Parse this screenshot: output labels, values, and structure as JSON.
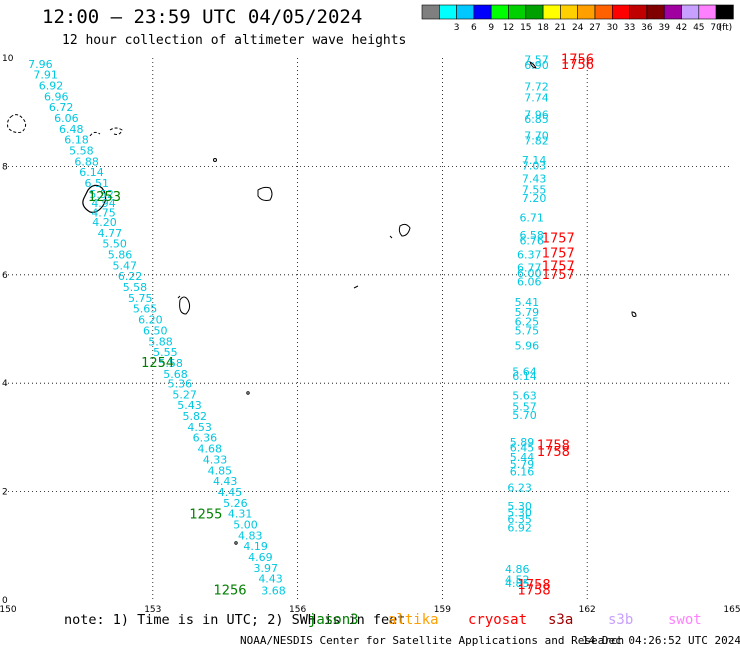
{
  "title": "12:00 — 23:59 UTC 04/05/2024",
  "subtitle": "12 hour collection of altimeter wave heights",
  "legend": {
    "unit": "(ft)",
    "bins": [
      {
        "label": "",
        "color": "#7f7f7f"
      },
      {
        "label": "3",
        "color": "#00ffff"
      },
      {
        "label": "6",
        "color": "#00c8ff"
      },
      {
        "label": "9",
        "color": "#0000ff"
      },
      {
        "label": "12",
        "color": "#00ff00"
      },
      {
        "label": "15",
        "color": "#00d000"
      },
      {
        "label": "18",
        "color": "#00a000"
      },
      {
        "label": "21",
        "color": "#ffff00"
      },
      {
        "label": "24",
        "color": "#ffd000"
      },
      {
        "label": "27",
        "color": "#ffa000"
      },
      {
        "label": "30",
        "color": "#ff6000"
      },
      {
        "label": "33",
        "color": "#ff0000"
      },
      {
        "label": "36",
        "color": "#c00000"
      },
      {
        "label": "39",
        "color": "#800000"
      },
      {
        "label": "42",
        "color": "#a000a0"
      },
      {
        "label": "45",
        "color": "#c8a0ff"
      },
      {
        "label": "70",
        "color": "#ff80ff"
      },
      {
        "label": "",
        "color": "#000000"
      }
    ]
  },
  "axes": {
    "x_ticks": [
      "150",
      "153",
      "156",
      "159",
      "162",
      "165"
    ],
    "y_ticks": [
      "0",
      "2",
      "4",
      "6",
      "8",
      "10"
    ]
  },
  "map": {
    "lon_range": [
      150,
      165
    ],
    "lat_range": [
      0,
      10
    ],
    "grid": true,
    "value_color": "#00c8e0",
    "time_color_jason": "#008000",
    "time_color_cryosat": "#ff0000"
  },
  "tracks": [
    {
      "time_labels": [
        {
          "text": "1253",
          "lon": 152.0,
          "lat": 7.36
        },
        {
          "text": "1254",
          "lon": 153.1,
          "lat": 4.3
        },
        {
          "text": "1255",
          "lon": 154.1,
          "lat": 1.5
        },
        {
          "text": "1256",
          "lon": 154.6,
          "lat": 0.1
        }
      ],
      "values": [
        {
          "text": "7.96",
          "lon": 150.67,
          "lat": 9.82
        },
        {
          "text": "7.91",
          "lon": 150.78,
          "lat": 9.62
        },
        {
          "text": "6.92",
          "lon": 150.89,
          "lat": 9.42
        },
        {
          "text": "6.96",
          "lon": 151.0,
          "lat": 9.22
        },
        {
          "text": "6.72",
          "lon": 151.1,
          "lat": 9.02
        },
        {
          "text": "6.06",
          "lon": 151.21,
          "lat": 8.82
        },
        {
          "text": "6.48",
          "lon": 151.31,
          "lat": 8.62
        },
        {
          "text": "6.18",
          "lon": 151.42,
          "lat": 8.42
        },
        {
          "text": "5.58",
          "lon": 151.52,
          "lat": 8.22
        },
        {
          "text": "6.88",
          "lon": 151.63,
          "lat": 8.02
        },
        {
          "text": "6.14",
          "lon": 151.73,
          "lat": 7.82
        },
        {
          "text": "6.51",
          "lon": 151.84,
          "lat": 7.62
        },
        {
          "text": "5.52",
          "lon": 151.94,
          "lat": 7.42
        },
        {
          "text": "4.94",
          "lon": 151.98,
          "lat": 7.25
        },
        {
          "text": "4.75",
          "lon": 151.98,
          "lat": 7.08
        },
        {
          "text": "4.20",
          "lon": 152.0,
          "lat": 6.9
        },
        {
          "text": "4.77",
          "lon": 152.11,
          "lat": 6.7
        },
        {
          "text": "5.50",
          "lon": 152.21,
          "lat": 6.5
        },
        {
          "text": "5.86",
          "lon": 152.32,
          "lat": 6.3
        },
        {
          "text": "5.47",
          "lon": 152.42,
          "lat": 6.1
        },
        {
          "text": "6.22",
          "lon": 152.53,
          "lat": 5.9
        },
        {
          "text": "5.58",
          "lon": 152.63,
          "lat": 5.7
        },
        {
          "text": "5.75",
          "lon": 152.74,
          "lat": 5.5
        },
        {
          "text": "5.65",
          "lon": 152.84,
          "lat": 5.3
        },
        {
          "text": "6.20",
          "lon": 152.95,
          "lat": 5.1
        },
        {
          "text": "6.50",
          "lon": 153.05,
          "lat": 4.9
        },
        {
          "text": "5.88",
          "lon": 153.16,
          "lat": 4.7
        },
        {
          "text": "5.55",
          "lon": 153.26,
          "lat": 4.5
        },
        {
          "text": "5.58",
          "lon": 153.37,
          "lat": 4.3
        },
        {
          "text": "5.68",
          "lon": 153.47,
          "lat": 4.1
        },
        {
          "text": "5.36",
          "lon": 153.56,
          "lat": 3.92
        },
        {
          "text": "5.27",
          "lon": 153.66,
          "lat": 3.72
        },
        {
          "text": "5.43",
          "lon": 153.76,
          "lat": 3.52
        },
        {
          "text": "5.82",
          "lon": 153.87,
          "lat": 3.32
        },
        {
          "text": "4.53",
          "lon": 153.97,
          "lat": 3.12
        },
        {
          "text": "6.36",
          "lon": 154.08,
          "lat": 2.92
        },
        {
          "text": "4.68",
          "lon": 154.18,
          "lat": 2.72
        },
        {
          "text": "4.33",
          "lon": 154.29,
          "lat": 2.52
        },
        {
          "text": "4.85",
          "lon": 154.39,
          "lat": 2.32
        },
        {
          "text": "4.43",
          "lon": 154.5,
          "lat": 2.12
        },
        {
          "text": "4.45",
          "lon": 154.6,
          "lat": 1.92
        },
        {
          "text": "5.26",
          "lon": 154.71,
          "lat": 1.72
        },
        {
          "text": "4.31",
          "lon": 154.81,
          "lat": 1.52
        },
        {
          "text": "5.00",
          "lon": 154.92,
          "lat": 1.32
        },
        {
          "text": "4.83",
          "lon": 155.02,
          "lat": 1.12
        },
        {
          "text": "4.19",
          "lon": 155.13,
          "lat": 0.92
        },
        {
          "text": "4.69",
          "lon": 155.23,
          "lat": 0.72
        },
        {
          "text": "3.97",
          "lon": 155.34,
          "lat": 0.52
        },
        {
          "text": "4.43",
          "lon": 155.44,
          "lat": 0.32
        },
        {
          "text": "3.68",
          "lon": 155.5,
          "lat": 0.1
        }
      ]
    },
    {
      "time_labels": [
        {
          "text": "1756",
          "lon": 161.8,
          "lat": 9.9
        },
        {
          "text": "1756",
          "lon": 161.8,
          "lat": 9.8
        },
        {
          "text": "1757",
          "lon": 161.4,
          "lat": 6.6
        },
        {
          "text": "1757",
          "lon": 161.4,
          "lat": 6.32
        },
        {
          "text": "1757",
          "lon": 161.4,
          "lat": 6.08
        },
        {
          "text": "1757",
          "lon": 161.4,
          "lat": 5.92
        },
        {
          "text": "1758",
          "lon": 161.3,
          "lat": 2.78
        },
        {
          "text": "1758",
          "lon": 161.3,
          "lat": 2.66
        },
        {
          "text": "1758",
          "lon": 160.9,
          "lat": 0.2
        },
        {
          "text": "1758",
          "lon": 160.9,
          "lat": 0.1
        }
      ],
      "values": [
        {
          "text": "7.57",
          "lon": 160.95,
          "lat": 9.9
        },
        {
          "text": "6.90",
          "lon": 160.95,
          "lat": 9.8
        },
        {
          "text": "7.72",
          "lon": 160.95,
          "lat": 9.4
        },
        {
          "text": "7.74",
          "lon": 160.95,
          "lat": 9.2
        },
        {
          "text": "7.96",
          "lon": 160.95,
          "lat": 8.88
        },
        {
          "text": "6.85",
          "lon": 160.95,
          "lat": 8.8
        },
        {
          "text": "7.70",
          "lon": 160.95,
          "lat": 8.5
        },
        {
          "text": "7.82",
          "lon": 160.95,
          "lat": 8.4
        },
        {
          "text": "7.14",
          "lon": 160.9,
          "lat": 8.04
        },
        {
          "text": "7.03",
          "lon": 160.9,
          "lat": 7.94
        },
        {
          "text": "7.43",
          "lon": 160.9,
          "lat": 7.7
        },
        {
          "text": "7.55",
          "lon": 160.9,
          "lat": 7.5
        },
        {
          "text": "7.20",
          "lon": 160.9,
          "lat": 7.34
        },
        {
          "text": "6.71",
          "lon": 160.85,
          "lat": 6.98
        },
        {
          "text": "6.58",
          "lon": 160.85,
          "lat": 6.66
        },
        {
          "text": "6.76",
          "lon": 160.85,
          "lat": 6.56
        },
        {
          "text": "6.37",
          "lon": 160.8,
          "lat": 6.3
        },
        {
          "text": "6.77",
          "lon": 160.8,
          "lat": 6.06
        },
        {
          "text": "6.00",
          "lon": 160.8,
          "lat": 5.96
        },
        {
          "text": "6.06",
          "lon": 160.8,
          "lat": 5.8
        },
        {
          "text": "5.41",
          "lon": 160.75,
          "lat": 5.42
        },
        {
          "text": "5.79",
          "lon": 160.75,
          "lat": 5.24
        },
        {
          "text": "6.25",
          "lon": 160.75,
          "lat": 5.06
        },
        {
          "text": "5.75",
          "lon": 160.75,
          "lat": 4.9
        },
        {
          "text": "5.96",
          "lon": 160.75,
          "lat": 4.62
        },
        {
          "text": "5.64",
          "lon": 160.7,
          "lat": 4.14
        },
        {
          "text": "6.14",
          "lon": 160.7,
          "lat": 4.06
        },
        {
          "text": "5.63",
          "lon": 160.7,
          "lat": 3.7
        },
        {
          "text": "5.57",
          "lon": 160.7,
          "lat": 3.5
        },
        {
          "text": "5.70",
          "lon": 160.7,
          "lat": 3.34
        },
        {
          "text": "5.89",
          "lon": 160.65,
          "lat": 2.84
        },
        {
          "text": "6.45",
          "lon": 160.65,
          "lat": 2.74
        },
        {
          "text": "5.44",
          "lon": 160.65,
          "lat": 2.56
        },
        {
          "text": "5.79",
          "lon": 160.65,
          "lat": 2.44
        },
        {
          "text": "6.16",
          "lon": 160.65,
          "lat": 2.3
        },
        {
          "text": "6.23",
          "lon": 160.6,
          "lat": 2.0
        },
        {
          "text": "5.30",
          "lon": 160.6,
          "lat": 1.66
        },
        {
          "text": "5.30",
          "lon": 160.6,
          "lat": 1.54
        },
        {
          "text": "6.35",
          "lon": 160.6,
          "lat": 1.42
        },
        {
          "text": "6.92",
          "lon": 160.6,
          "lat": 1.26
        },
        {
          "text": "4.86",
          "lon": 160.55,
          "lat": 0.5
        },
        {
          "text": "4.52",
          "lon": 160.55,
          "lat": 0.3
        },
        {
          "text": "4.85",
          "lon": 160.55,
          "lat": 0.24
        }
      ]
    }
  ],
  "note": "note:  1) Time is in UTC; 2) SWH is in feet",
  "satellites": [
    {
      "name": "jason3",
      "color": "#008000"
    },
    {
      "name": "altika",
      "color": "#ffa000"
    },
    {
      "name": "cryosat",
      "color": "#ff0000"
    },
    {
      "name": "s3a",
      "color": "#a00000"
    },
    {
      "name": "s3b",
      "color": "#c8a0ff"
    },
    {
      "name": "swot",
      "color": "#ff80ff"
    }
  ],
  "footer": {
    "credit": "NOAA/NESDIS Center for Satellite Applications and Research",
    "stamp": "14 Dec 04:26:52 UTC 2024"
  }
}
